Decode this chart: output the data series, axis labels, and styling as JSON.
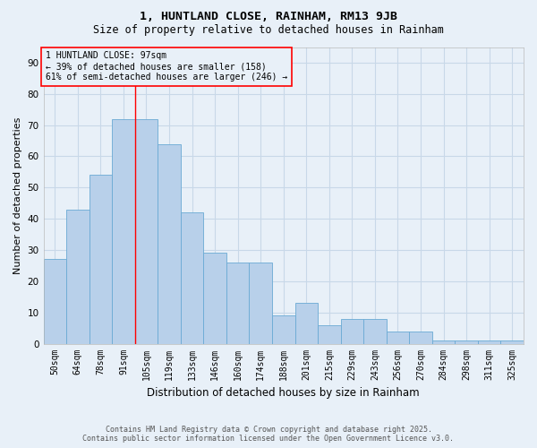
{
  "title1": "1, HUNTLAND CLOSE, RAINHAM, RM13 9JB",
  "title2": "Size of property relative to detached houses in Rainham",
  "xlabel": "Distribution of detached houses by size in Rainham",
  "ylabel": "Number of detached properties",
  "categories": [
    "50sqm",
    "64sqm",
    "78sqm",
    "91sqm",
    "105sqm",
    "119sqm",
    "133sqm",
    "146sqm",
    "160sqm",
    "174sqm",
    "188sqm",
    "201sqm",
    "215sqm",
    "229sqm",
    "243sqm",
    "256sqm",
    "270sqm",
    "284sqm",
    "298sqm",
    "311sqm",
    "325sqm"
  ],
  "values": [
    27,
    43,
    54,
    72,
    72,
    64,
    42,
    29,
    26,
    26,
    9,
    13,
    6,
    8,
    8,
    4,
    4,
    1,
    1,
    1,
    1
  ],
  "bar_color": "#b8d0ea",
  "bar_edge_color": "#6aaad4",
  "grid_color": "#c8d8e8",
  "background_color": "#e8f0f8",
  "annotation_text": "1 HUNTLAND CLOSE: 97sqm\n← 39% of detached houses are smaller (158)\n61% of semi-detached houses are larger (246) →",
  "property_line_x": 3.5,
  "ylim": [
    0,
    95
  ],
  "yticks": [
    0,
    10,
    20,
    30,
    40,
    50,
    60,
    70,
    80,
    90
  ],
  "footer_line1": "Contains HM Land Registry data © Crown copyright and database right 2025.",
  "footer_line2": "Contains public sector information licensed under the Open Government Licence v3.0."
}
